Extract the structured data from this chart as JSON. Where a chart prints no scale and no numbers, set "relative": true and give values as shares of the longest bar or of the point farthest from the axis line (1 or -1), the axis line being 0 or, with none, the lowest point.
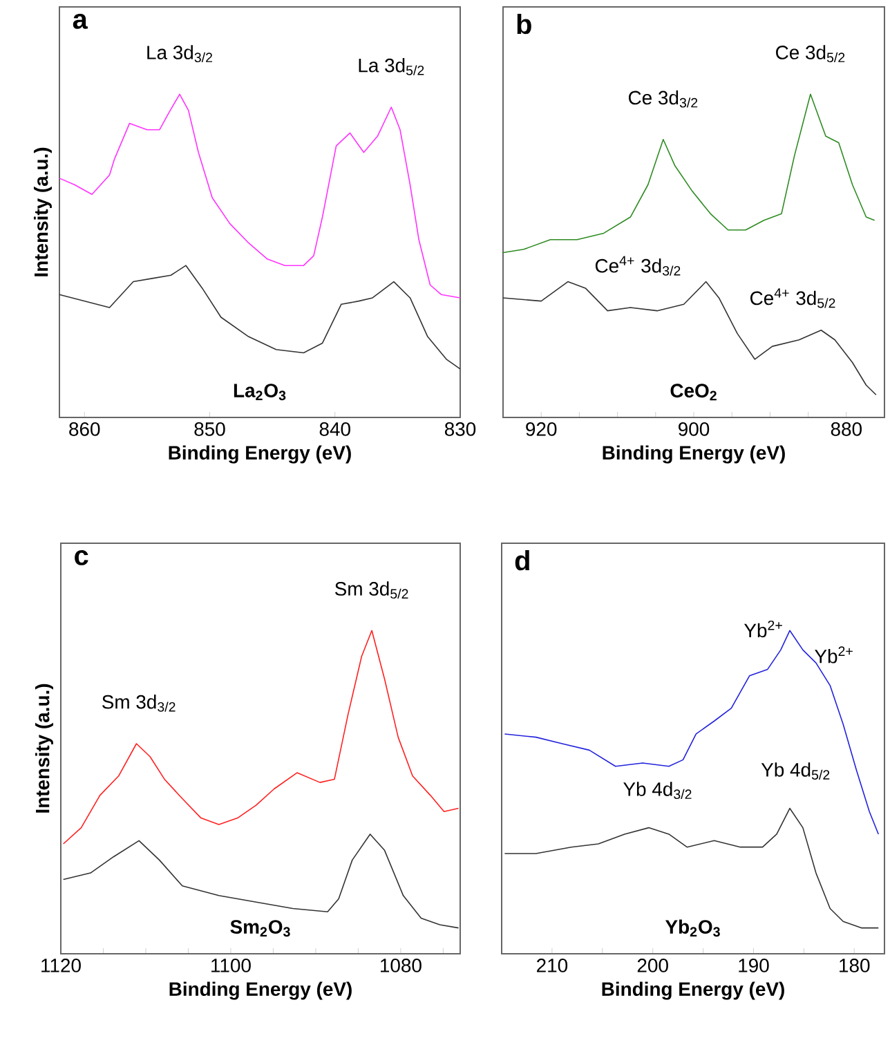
{
  "chart_data": [
    {
      "type": "line",
      "title": "a",
      "xlabel": "Binding Energy (eV)",
      "ylabel": "Intensity (a.u.)",
      "relative": true,
      "xlim": [
        862,
        830
      ],
      "xticks": [
        860,
        850,
        840,
        830
      ],
      "series": [
        {
          "color": "#ff33ff",
          "x": [
            862,
            860.8,
            859.4,
            858,
            857.6,
            856.4,
            855,
            854,
            853.3,
            852.4,
            851.7,
            850.9,
            849.8,
            848.4,
            846.9,
            845.4,
            844,
            842.5,
            841.7,
            841,
            839.9,
            838.8,
            837.7,
            836.6,
            835.5,
            834.8,
            834,
            833.3,
            832.4,
            831.5,
            830
          ],
          "values": [
            0.74,
            0.72,
            0.69,
            0.75,
            0.8,
            0.91,
            0.89,
            0.89,
            0.94,
            1.0,
            0.95,
            0.82,
            0.68,
            0.6,
            0.54,
            0.49,
            0.47,
            0.47,
            0.5,
            0.62,
            0.84,
            0.88,
            0.82,
            0.87,
            0.96,
            0.89,
            0.72,
            0.55,
            0.41,
            0.38,
            0.37
          ]
        },
        {
          "name": "La$_{2}$O$_{3}$",
          "color": "#333333",
          "x": [
            862,
            858,
            856.1,
            854.6,
            853.1,
            851.9,
            850.6,
            849.1,
            846.9,
            844.7,
            842.5,
            841,
            839.5,
            838.1,
            837,
            835.3,
            834,
            832.6,
            831.1,
            830
          ],
          "values": [
            0.38,
            0.34,
            0.42,
            0.43,
            0.44,
            0.47,
            0.4,
            0.31,
            0.25,
            0.21,
            0.2,
            0.23,
            0.35,
            0.36,
            0.37,
            0.42,
            0.37,
            0.25,
            0.18,
            0.15
          ]
        }
      ],
      "annotations": [
        {
          "text": "La 3d$_{3/2}$",
          "x": 852.4,
          "y": 1.0
        },
        {
          "text": "La 3d$_{5/2}$",
          "x": 835.5,
          "y": 0.96
        }
      ]
    },
    {
      "type": "line",
      "title": "b",
      "xlabel": "Binding Energy (eV)",
      "relative": true,
      "xlim": [
        925,
        875
      ],
      "xticks": [
        920,
        {
          "value": 915,
          "label": null
        },
        {
          "value": 910,
          "label": null
        },
        {
          "value": 905,
          "label": null
        },
        900,
        {
          "value": 895,
          "label": null
        },
        {
          "value": 890,
          "label": null
        },
        {
          "value": 885,
          "label": null
        },
        880
      ],
      "series": [
        {
          "color": "#2e8b22",
          "x": [
            925,
            922.3,
            918.8,
            915.3,
            911.8,
            908.3,
            906,
            904,
            902.5,
            900.2,
            897.8,
            895.5,
            893.2,
            890.8,
            888.5,
            886.8,
            884.7,
            882.7,
            881,
            879.2,
            877.4,
            876.3
          ],
          "values": [
            0.51,
            0.52,
            0.55,
            0.55,
            0.57,
            0.62,
            0.72,
            0.86,
            0.78,
            0.7,
            0.63,
            0.58,
            0.58,
            0.61,
            0.63,
            0.81,
            1.0,
            0.87,
            0.85,
            0.72,
            0.62,
            0.61
          ]
        },
        {
          "name": "CeO$_{2}$",
          "color": "#333333",
          "x": [
            925,
            920,
            916.5,
            914.2,
            911.3,
            908.3,
            904.8,
            901.3,
            898.4,
            896.7,
            894.3,
            892,
            889.7,
            886.2,
            883.3,
            881.5,
            879.2,
            877.4,
            876.1
          ],
          "values": [
            0.37,
            0.36,
            0.42,
            0.4,
            0.33,
            0.34,
            0.33,
            0.35,
            0.42,
            0.37,
            0.26,
            0.18,
            0.22,
            0.24,
            0.27,
            0.24,
            0.17,
            0.1,
            0.07
          ]
        }
      ],
      "annotations": [
        {
          "text": "Ce 3d$_{3/2}$",
          "x": 904,
          "y": 0.86
        },
        {
          "text": "Ce 3d$_{5/2}$",
          "x": 884.7,
          "y": 1.0
        },
        {
          "text": "Ce$^{4+}$ 3d$_{3/2}$",
          "x": 907.3,
          "y": 0.34
        },
        {
          "text": "Ce$^{4+}$ 3d$_{5/2}$",
          "x": 887,
          "y": 0.24
        }
      ]
    },
    {
      "type": "line",
      "title": "c",
      "xlabel": "Binding Energy (eV)",
      "ylabel": "Intensity (a.u.)",
      "relative": true,
      "xlim": [
        1120,
        1073
      ],
      "xticks": [
        1120,
        {
          "value": 1115,
          "label": null
        },
        {
          "value": 1110,
          "label": null
        },
        {
          "value": 1105,
          "label": null
        },
        1100,
        {
          "value": 1095,
          "label": null
        },
        {
          "value": 1090,
          "label": null
        },
        {
          "value": 1085,
          "label": null
        },
        1080,
        {
          "value": 1075,
          "label": null
        }
      ],
      "series": [
        {
          "color": "#ff2020",
          "x": [
            1119.7,
            1117.6,
            1115.4,
            1113.2,
            1111.1,
            1109.5,
            1107.8,
            1105.7,
            1103.5,
            1101.4,
            1099.2,
            1097,
            1094.9,
            1092.2,
            1089.5,
            1087.8,
            1086.2,
            1084.6,
            1083.4,
            1081.9,
            1080.3,
            1078.6,
            1076.5,
            1074.9,
            1073.2
          ],
          "values": [
            0.34,
            0.39,
            0.49,
            0.55,
            0.65,
            0.61,
            0.54,
            0.48,
            0.42,
            0.4,
            0.42,
            0.46,
            0.51,
            0.56,
            0.53,
            0.54,
            0.74,
            0.92,
            1.0,
            0.85,
            0.67,
            0.55,
            0.49,
            0.44,
            0.45
          ]
        },
        {
          "name": "Sm$_{2}$O$_{3}$",
          "color": "#333333",
          "x": [
            1119.7,
            1116.5,
            1113.8,
            1110.8,
            1108.4,
            1105.7,
            1101.4,
            1097,
            1092.7,
            1088.6,
            1087.3,
            1085.7,
            1083.6,
            1081.9,
            1079.7,
            1077.6,
            1075.4,
            1073.2
          ],
          "values": [
            0.23,
            0.25,
            0.3,
            0.35,
            0.29,
            0.21,
            0.18,
            0.16,
            0.14,
            0.13,
            0.17,
            0.29,
            0.37,
            0.32,
            0.18,
            0.11,
            0.09,
            0.08
          ]
        }
      ],
      "annotations": [
        {
          "text": "Sm 3d$_{3/2}$",
          "x": 1110.8,
          "y": 0.65
        },
        {
          "text": "Sm 3d$_{5/2}$",
          "x": 1083.4,
          "y": 1.0
        }
      ]
    },
    {
      "type": "line",
      "title": "d",
      "xlabel": "Binding Energy (eV)",
      "relative": true,
      "xlim": [
        215,
        177
      ],
      "xticks": [
        210,
        {
          "value": 205,
          "label": null
        },
        200,
        {
          "value": 195,
          "label": null
        },
        190,
        {
          "value": 185,
          "label": null
        },
        180
      ],
      "series": [
        {
          "color": "#2222dd",
          "x": [
            214.7,
            211.6,
            209,
            206.3,
            203.7,
            201,
            198.4,
            197,
            195.7,
            193.9,
            192.2,
            190.4,
            188.6,
            187.3,
            186.4,
            185.1,
            183.8,
            182.4,
            181.1,
            179.8,
            178.5,
            177.6
          ],
          "values": [
            0.68,
            0.67,
            0.65,
            0.63,
            0.58,
            0.59,
            0.58,
            0.6,
            0.68,
            0.72,
            0.76,
            0.86,
            0.88,
            0.94,
            1.0,
            0.94,
            0.9,
            0.83,
            0.71,
            0.57,
            0.44,
            0.37
          ]
        },
        {
          "name": "Yb$_{2}$O$_{3}$",
          "color": "#333333",
          "x": [
            214.7,
            211.6,
            208.1,
            205.4,
            202.8,
            200.4,
            198.4,
            196.6,
            193.9,
            191.3,
            189.1,
            187.7,
            186.4,
            185.1,
            183.8,
            182.4,
            181.1,
            179.3,
            177.6
          ],
          "values": [
            0.31,
            0.31,
            0.33,
            0.34,
            0.37,
            0.39,
            0.37,
            0.33,
            0.35,
            0.33,
            0.33,
            0.37,
            0.45,
            0.39,
            0.25,
            0.14,
            0.1,
            0.08,
            0.08
          ]
        }
      ],
      "annotations": [
        {
          "text": "Yb$^{2+}$",
          "x": 189,
          "y": 0.88
        },
        {
          "text": "Yb$^{2+}$",
          "x": 182,
          "y": 0.8
        },
        {
          "text": "Yb 4d$_{3/2}$",
          "x": 199.5,
          "y": 0.38
        },
        {
          "text": "Yb 4d$_{5/2}$",
          "x": 185.8,
          "y": 0.44
        }
      ]
    }
  ]
}
